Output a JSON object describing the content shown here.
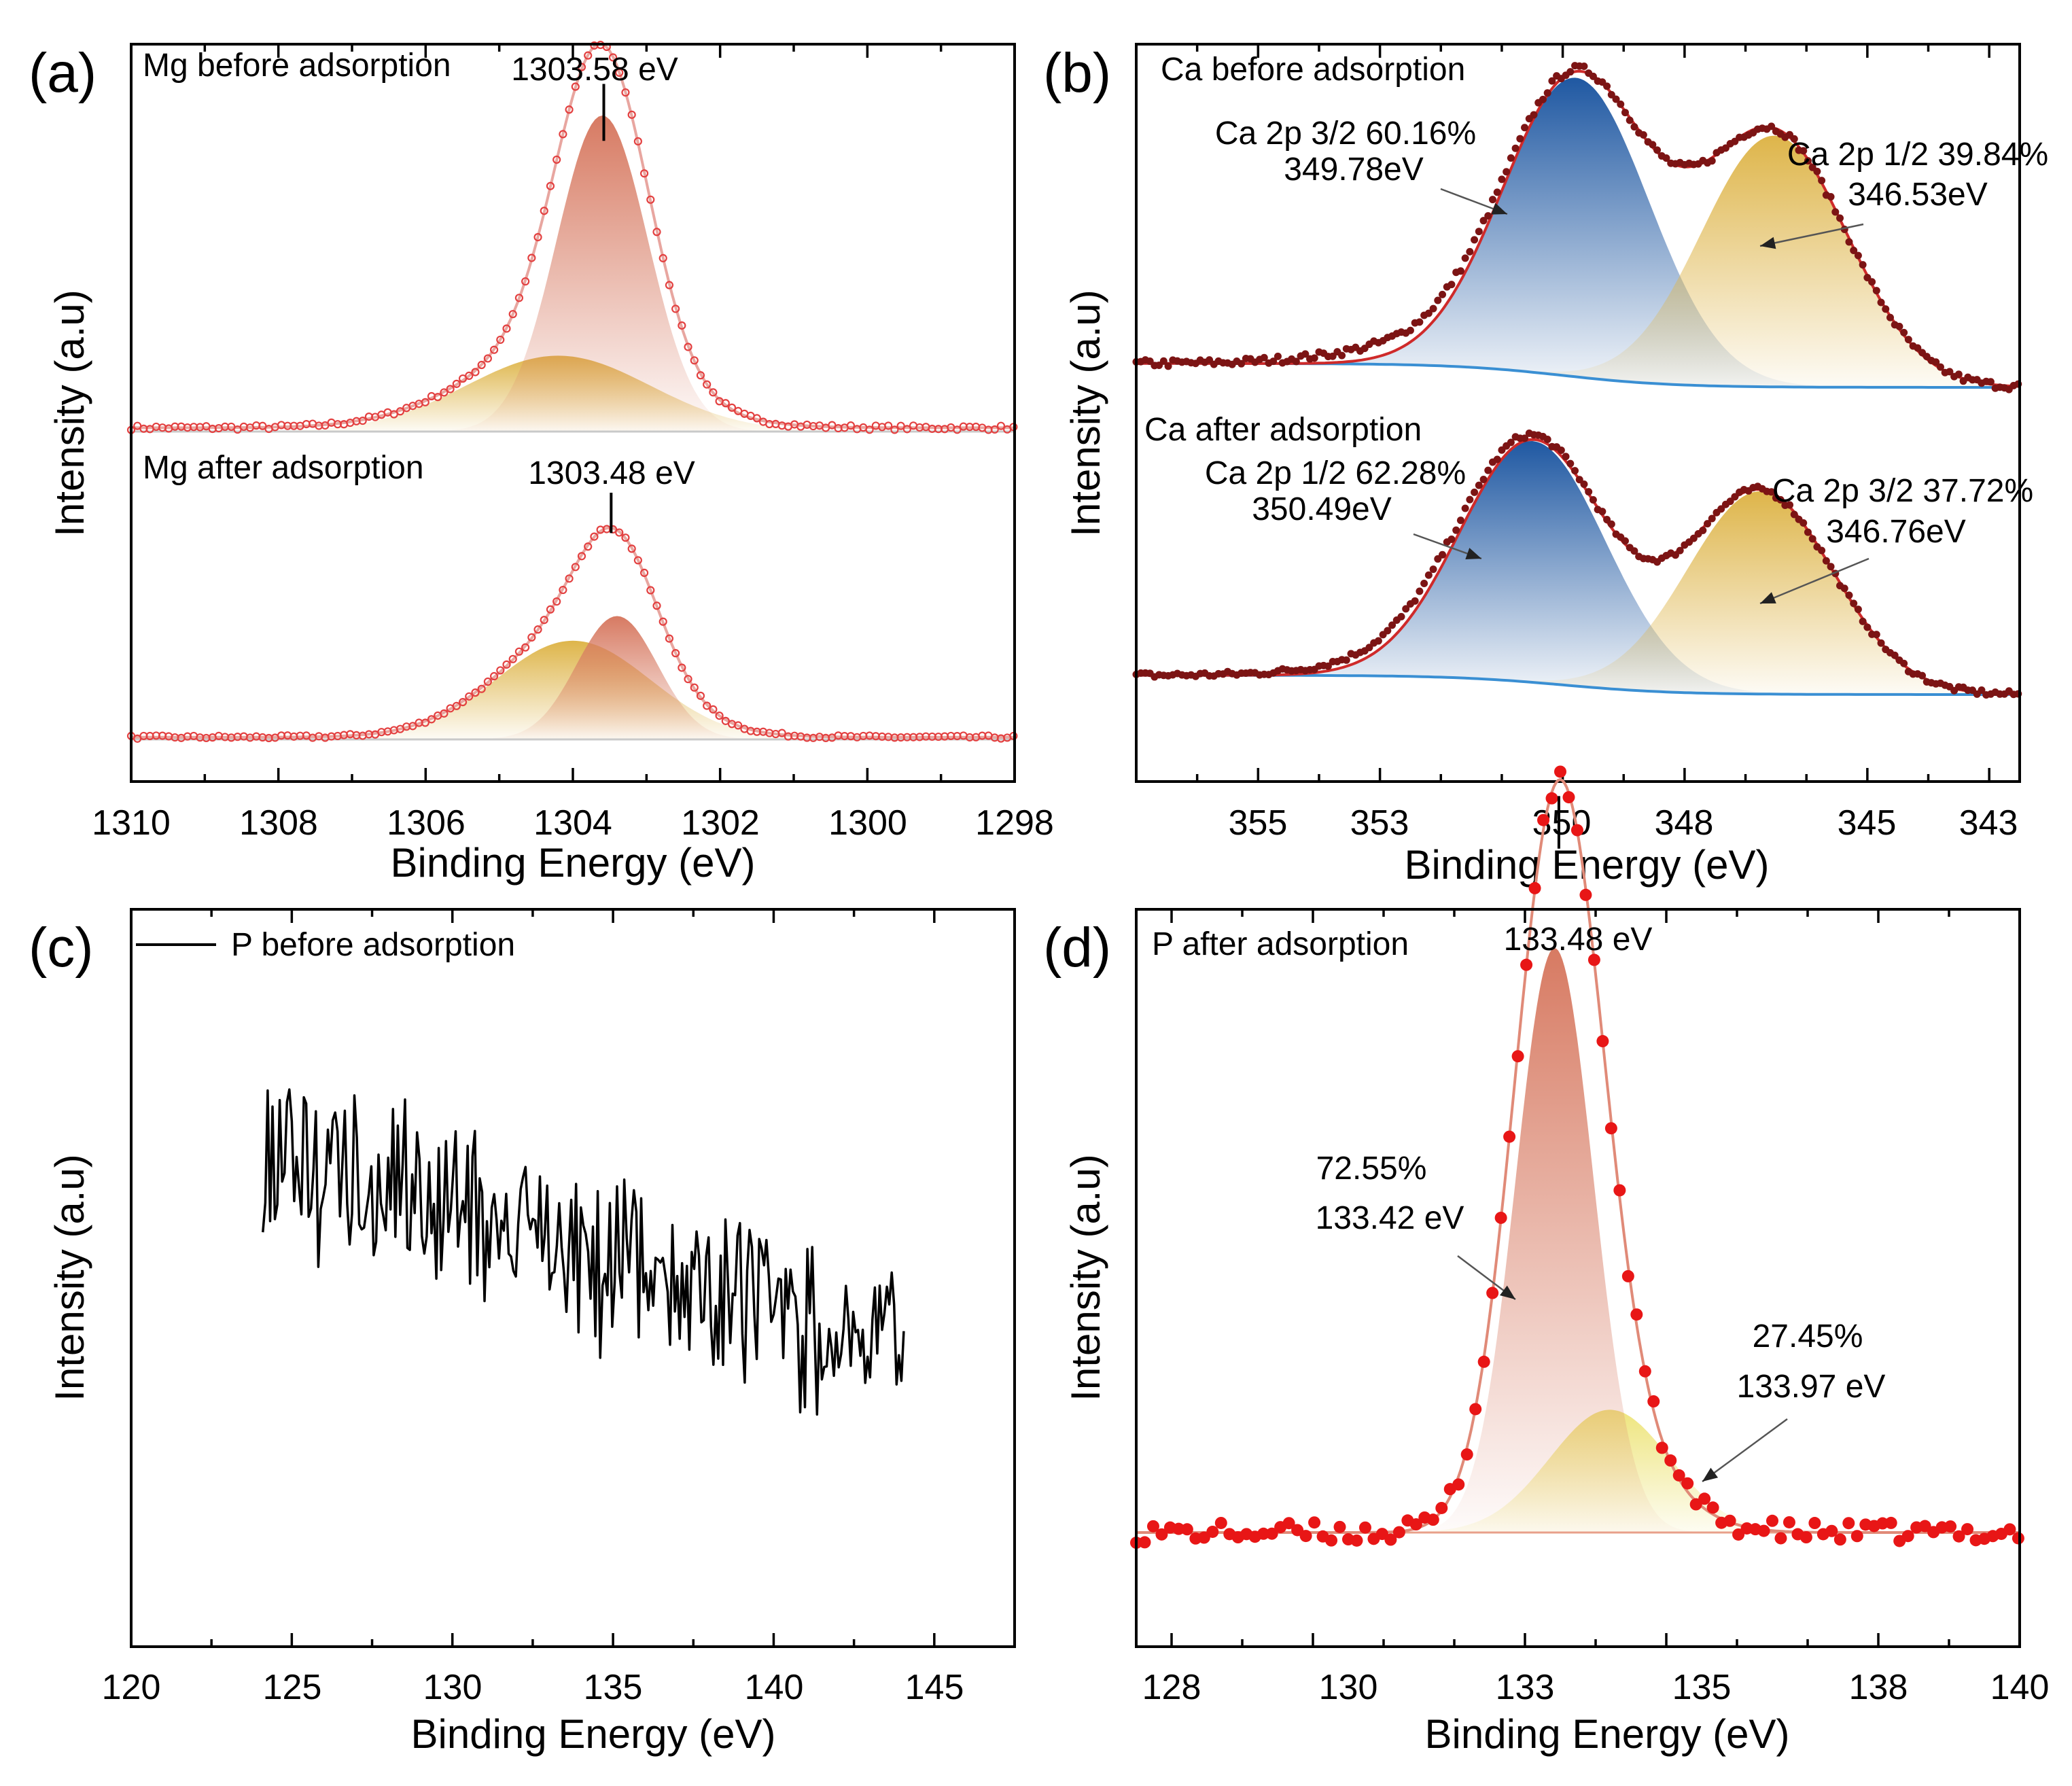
{
  "chart_data": [
    {
      "panel": "(a)",
      "type": "line",
      "title": "",
      "xlabel": "Binding Energy (eV)",
      "ylabel": "Intensity (a.u)",
      "xlim": [
        1310,
        1298
      ],
      "x_ticks": [
        "1310",
        "1308",
        "1306",
        "1304",
        "1302",
        "1300",
        "1298"
      ],
      "series": [
        {
          "name": "Mg before adsorption",
          "peak_label": "1303.58 eV",
          "peak": 1303.58,
          "components": [
            {
              "center": 1303.6,
              "height": 1.0
            },
            {
              "center": 1304.2,
              "height": 0.24
            }
          ]
        },
        {
          "name": "Mg after adsorption",
          "peak_label": "1303.48 eV",
          "peak": 1303.48,
          "components": [
            {
              "center": 1303.4,
              "height": 0.55
            },
            {
              "center": 1304.0,
              "height": 0.44
            }
          ]
        }
      ]
    },
    {
      "panel": "(b)",
      "type": "line",
      "xlabel": "Binding Energy (eV)",
      "ylabel": "Intensity (a.u)",
      "xlim": [
        357,
        342.5
      ],
      "x_ticks": [
        "355",
        "353",
        "350",
        "348",
        "345",
        "343"
      ],
      "series": [
        {
          "name": "Ca before adsorption",
          "components": [
            {
              "label_line1": "Ca 2p 3/2 60.16%",
              "label_line2": "349.78eV",
              "center": 349.78,
              "height": 1.0
            },
            {
              "label_line1": "Ca 2p 1/2 39.84%",
              "label_line2": "346.53eV",
              "center": 346.53,
              "height": 0.84
            }
          ]
        },
        {
          "name": "Ca after adsorption",
          "components": [
            {
              "label_line1": "Ca 2p 1/2 62.28%",
              "label_line2": "350.49eV",
              "center": 350.49,
              "height": 1.0
            },
            {
              "label_line1": "Ca 2p 3/2 37.72%",
              "label_line2": "346.76eV",
              "center": 346.76,
              "height": 0.84
            }
          ]
        }
      ]
    },
    {
      "panel": "(c)",
      "type": "line",
      "xlabel": "Binding Energy (eV)",
      "ylabel": "Intensity (a.u)",
      "xlim": [
        120,
        147.5
      ],
      "x_ticks": [
        "120",
        "125",
        "130",
        "135",
        "140",
        "145"
      ],
      "legend": "P before adsorption",
      "series": [
        {
          "name": "P before adsorption",
          "x_range": [
            124.1,
            144.1
          ],
          "mean_start": 0.66,
          "mean_end": 0.41,
          "noise": "random"
        }
      ]
    },
    {
      "panel": "(d)",
      "type": "line",
      "xlabel": "Binding Energy (eV)",
      "ylabel": "Intensity (a.u)",
      "xlim": [
        127.5,
        140
      ],
      "x_ticks": [
        "128",
        "130",
        "133",
        "135",
        "138",
        "140"
      ],
      "series": [
        {
          "name": "P after adsorption",
          "peak_label": "133.48 eV",
          "peak": 133.48,
          "components": [
            {
              "label_line1": "72.55%",
              "label_line2": "133.42 eV",
              "center": 133.42,
              "height": 1.0
            },
            {
              "label_line1": "27.45%",
              "label_line2": "133.97 eV",
              "center": 133.97,
              "height": 0.21
            }
          ]
        }
      ]
    }
  ]
}
